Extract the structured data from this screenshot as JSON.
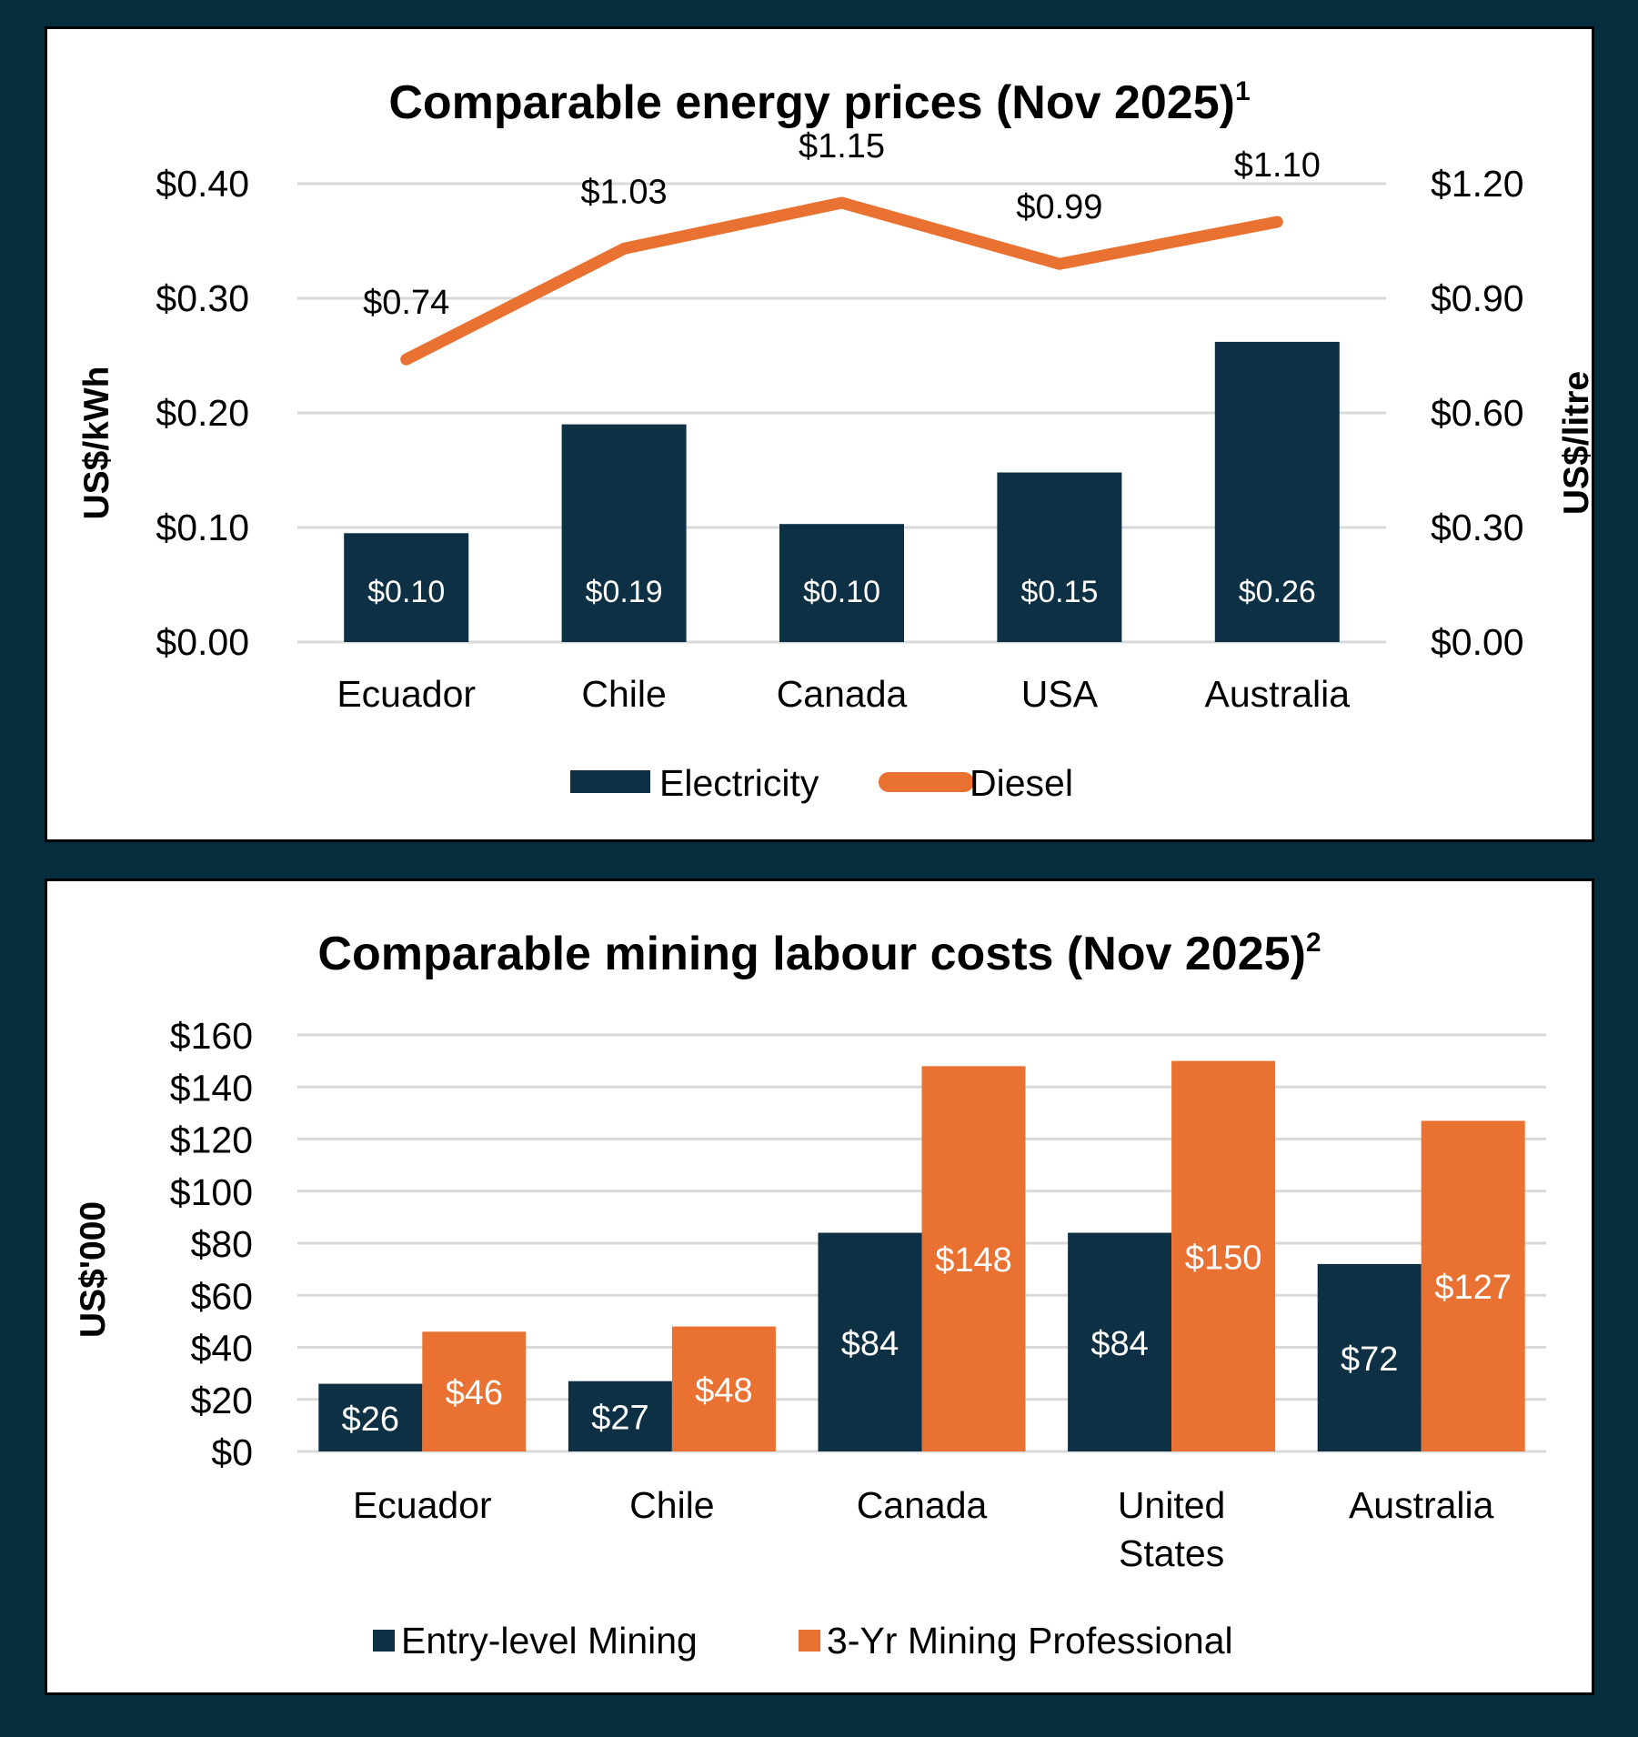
{
  "colors": {
    "background": "#062d3d",
    "navy": "#0e3044",
    "orange": "#e97132",
    "grid": "#d9d9d9"
  },
  "chart_data": [
    {
      "type": "bar+line",
      "title": "Comparable energy prices (Nov 2025)",
      "title_superscript": "1",
      "categories": [
        "Ecuador",
        "Chile",
        "Canada",
        "USA",
        "Australia"
      ],
      "series": [
        {
          "name": "Electricity",
          "type": "bar",
          "axis": "left",
          "values": [
            0.095,
            0.19,
            0.103,
            0.148,
            0.262
          ],
          "labels": [
            "$0.10",
            "$0.19",
            "$0.10",
            "$0.15",
            "$0.26"
          ]
        },
        {
          "name": "Diesel",
          "type": "line",
          "axis": "right",
          "values": [
            0.74,
            1.03,
            1.15,
            0.99,
            1.1
          ],
          "labels": [
            "$0.74",
            "$1.03",
            "$1.15",
            "$0.99",
            "$1.10"
          ]
        }
      ],
      "ylabel": "US$/kWh",
      "y2label": "US$/litre",
      "ylim": [
        0,
        0.4
      ],
      "y2lim": [
        0,
        1.2
      ],
      "yticks": [
        "$0.00",
        "$0.10",
        "$0.20",
        "$0.30",
        "$0.40"
      ],
      "y2ticks": [
        "$0.00",
        "$0.30",
        "$0.60",
        "$0.90",
        "$1.20"
      ],
      "grid": true,
      "legend": "bottom"
    },
    {
      "type": "bar",
      "title": "Comparable mining labour costs (Nov 2025)",
      "title_superscript": "2",
      "categories": [
        "Ecuador",
        "Chile",
        "Canada",
        "United States",
        "Australia"
      ],
      "category_lines": [
        [
          "Ecuador"
        ],
        [
          "Chile"
        ],
        [
          "Canada"
        ],
        [
          "United",
          "States"
        ],
        [
          "Australia"
        ]
      ],
      "series": [
        {
          "name": "Entry-level Mining",
          "values": [
            26,
            27,
            84,
            84,
            72
          ],
          "labels": [
            "$26",
            "$27",
            "$84",
            "$84",
            "$72"
          ]
        },
        {
          "name": "3-Yr Mining Professional",
          "values": [
            46,
            48,
            148,
            150,
            127
          ],
          "labels": [
            "$46",
            "$48",
            "$148",
            "$150",
            "$127"
          ]
        }
      ],
      "ylabel": "US$'000",
      "ylim": [
        0,
        160
      ],
      "yticks": [
        "$0",
        "$20",
        "$40",
        "$60",
        "$80",
        "$100",
        "$120",
        "$140",
        "$160"
      ],
      "grid": true,
      "legend": "bottom"
    }
  ]
}
